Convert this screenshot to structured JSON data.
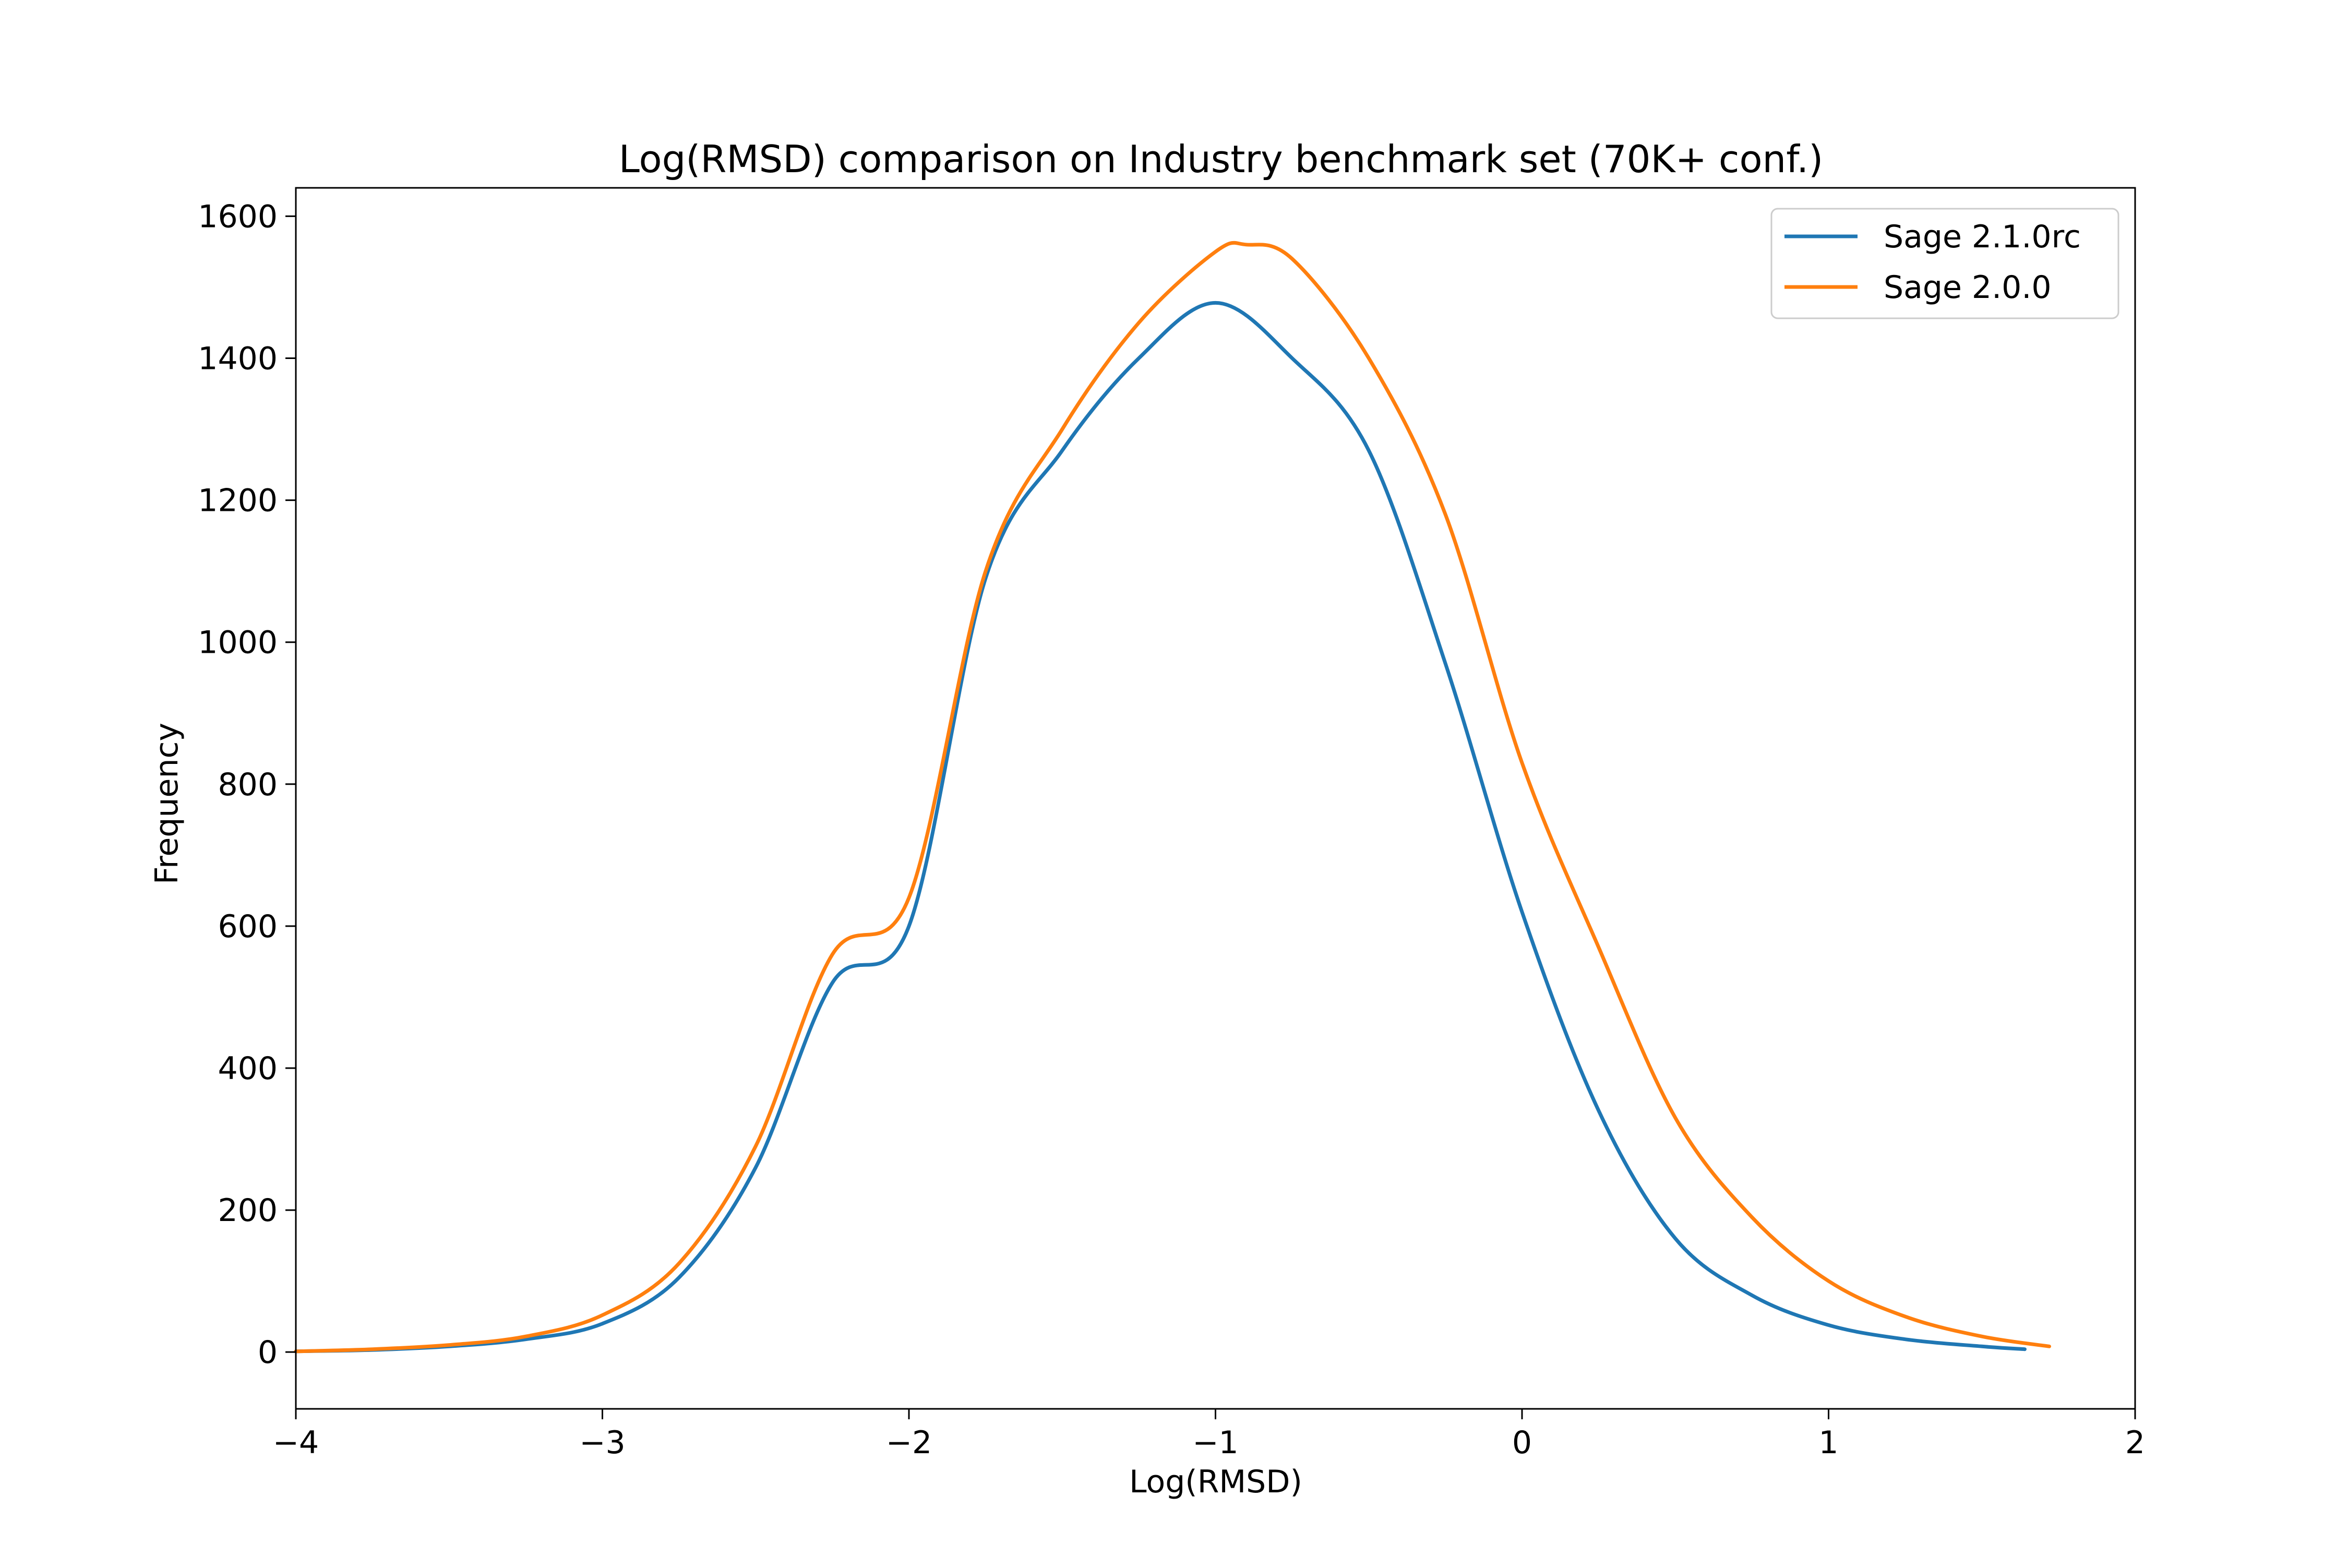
{
  "chart_data": {
    "type": "line",
    "title": "Log(RMSD) comparison on Industry benchmark set (70K+ conf.)",
    "xlabel": "Log(RMSD)",
    "ylabel": "Frequency",
    "xlim": [
      -4,
      2
    ],
    "ylim": [
      -80,
      1640
    ],
    "x_ticks": [
      -4,
      -3,
      -2,
      -1,
      0,
      1,
      2
    ],
    "x_tick_labels": [
      "−4",
      "−3",
      "−2",
      "−1",
      "0",
      "1",
      "2"
    ],
    "y_ticks": [
      0,
      200,
      400,
      600,
      800,
      1000,
      1200,
      1400,
      1600
    ],
    "y_tick_labels": [
      "0",
      "200",
      "400",
      "600",
      "800",
      "1000",
      "1200",
      "1400",
      "1600"
    ],
    "grid": false,
    "legend_position": "top-right",
    "series": [
      {
        "name": "Sage 2.1.0rc",
        "color": "#1f77b4",
        "x": [
          -4.0,
          -3.75,
          -3.5,
          -3.25,
          -3.0,
          -2.75,
          -2.5,
          -2.25,
          -2.0,
          -1.75,
          -1.5,
          -1.25,
          -1.0,
          -0.75,
          -0.5,
          -0.25,
          0.0,
          0.25,
          0.5,
          0.75,
          1.0,
          1.25,
          1.5,
          1.64
        ],
        "y": [
          1,
          3,
          8,
          18,
          40,
          105,
          260,
          520,
          600,
          1090,
          1270,
          1400,
          1478,
          1400,
          1270,
          970,
          620,
          340,
          160,
          80,
          38,
          18,
          8,
          4
        ]
      },
      {
        "name": "Sage 2.0.0",
        "color": "#ff7f0e",
        "x": [
          -4.0,
          -3.75,
          -3.5,
          -3.25,
          -3.0,
          -2.75,
          -2.5,
          -2.25,
          -2.0,
          -1.75,
          -1.5,
          -1.25,
          -1.0,
          -0.9,
          -0.75,
          -0.5,
          -0.25,
          0.0,
          0.25,
          0.5,
          0.75,
          1.0,
          1.25,
          1.5,
          1.72
        ],
        "y": [
          1,
          4,
          10,
          22,
          52,
          125,
          290,
          560,
          640,
          1100,
          1300,
          1450,
          1550,
          1560,
          1540,
          1400,
          1180,
          830,
          570,
          330,
          190,
          100,
          50,
          22,
          8
        ]
      }
    ]
  }
}
